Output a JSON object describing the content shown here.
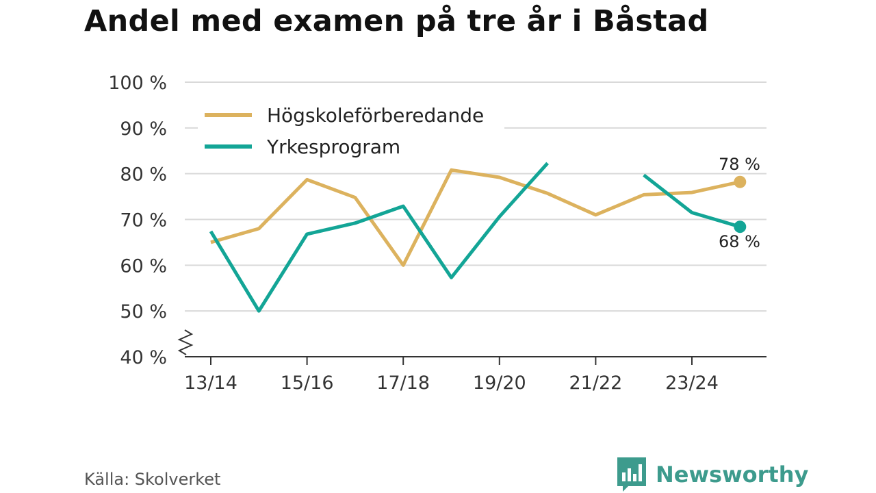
{
  "title": "Andel med examen på tre år i Båstad",
  "source": "Källa: Skolverket",
  "brand": "Newsworthy",
  "colors": {
    "hogskole": "#dcb25e",
    "yrkes": "#13a596",
    "grid": "#d9d9d9",
    "axis": "#333333",
    "brand": "#3d9b8d"
  },
  "chart_data": {
    "type": "line",
    "title": "Andel med examen på tre år i Båstad",
    "xlabel": "",
    "ylabel": "",
    "ylim": [
      40,
      100
    ],
    "y_ticks": [
      40,
      50,
      60,
      70,
      80,
      90,
      100
    ],
    "y_tick_labels": [
      "40 %",
      "50 %",
      "60 %",
      "70 %",
      "80 %",
      "90 %",
      "100 %"
    ],
    "categories": [
      "13/14",
      "14/15",
      "15/16",
      "16/17",
      "17/18",
      "18/19",
      "19/20",
      "20/21",
      "21/22",
      "22/23",
      "23/24",
      "24/25"
    ],
    "x_tick_labels": [
      "13/14",
      "15/16",
      "17/18",
      "19/20",
      "21/22",
      "23/24"
    ],
    "axis_break": true,
    "grid": true,
    "legend_position": "top-left",
    "series": [
      {
        "name": "Högskoleförberedande",
        "color": "#dcb25e",
        "values": [
          65,
          68,
          78.7,
          74.8,
          60,
          80.8,
          79.2,
          75.7,
          71,
          75.4,
          75.9,
          78.2
        ],
        "end_label": "78 %"
      },
      {
        "name": "Yrkesprogram",
        "color": "#13a596",
        "values": [
          67.4,
          50,
          66.8,
          69.2,
          72.9,
          57.3,
          70.6,
          82.3,
          null,
          79.7,
          71.5,
          68.4
        ],
        "end_label": "68 %"
      }
    ]
  }
}
